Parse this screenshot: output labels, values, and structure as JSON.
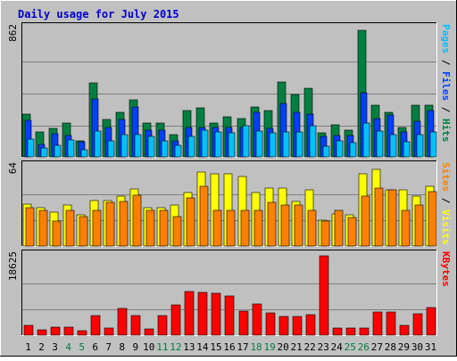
{
  "chart_data": {
    "type": "bar",
    "title": "Daily usage for July 2015",
    "categories": [
      "1",
      "2",
      "3",
      "4",
      "5",
      "6",
      "7",
      "8",
      "9",
      "10",
      "11",
      "12",
      "13",
      "14",
      "15",
      "16",
      "17",
      "18",
      "19",
      "20",
      "21",
      "22",
      "23",
      "24",
      "25",
      "26",
      "27",
      "28",
      "29",
      "30",
      "31"
    ],
    "weekend_days": [
      "4",
      "5",
      "11",
      "12",
      "18",
      "19",
      "25",
      "26"
    ],
    "panels": [
      {
        "name": "hits-files-pages",
        "ymax": 862,
        "ymax_label": "862",
        "right_label": {
          "parts": [
            {
              "text": "Pages",
              "color": "#00c0ff"
            },
            {
              "text": " / ",
              "color": "#000000"
            },
            {
              "text": "Files",
              "color": "#0040ff"
            },
            {
              "text": " / ",
              "color": "#000000"
            },
            {
              "text": "Hits",
              "color": "#008040"
            }
          ]
        },
        "series": [
          {
            "name": "Hits",
            "color": "#008040",
            "values": [
              285,
              170,
              190,
              225,
              110,
              495,
              250,
              300,
              385,
              225,
              230,
              150,
              310,
              330,
              230,
              270,
              255,
              335,
              310,
              500,
              420,
              460,
              160,
              215,
              180,
              852,
              350,
              300,
              200,
              350,
              350
            ]
          },
          {
            "name": "Files",
            "color": "#0040ff",
            "values": [
              245,
              85,
              155,
              145,
              100,
              390,
              200,
              250,
              335,
              180,
              180,
              110,
              200,
              200,
              200,
              200,
              195,
              300,
              190,
              360,
              300,
              290,
              140,
              145,
              145,
              430,
              260,
              280,
              170,
              240,
              310
            ]
          },
          {
            "name": "Pages",
            "color": "#00c0ff",
            "values": [
              120,
              60,
              75,
              115,
              50,
              175,
              110,
              150,
              150,
              140,
              105,
              80,
              135,
              180,
              170,
              160,
              210,
              175,
              160,
              165,
              165,
              210,
              70,
              110,
              95,
              225,
              175,
              150,
              100,
              150,
              165
            ]
          }
        ]
      },
      {
        "name": "visits-sites",
        "ymax": 64,
        "ymax_label": "64",
        "right_label": {
          "parts": [
            {
              "text": "Sites",
              "color": "#ff8000"
            },
            {
              "text": " / ",
              "color": "#000000"
            },
            {
              "text": "Visits",
              "color": "#ffff00"
            }
          ]
        },
        "series": [
          {
            "name": "Visits",
            "color": "#ffff00",
            "values": [
              34,
              31,
              27,
              33,
              25,
              37,
              37,
              40,
              46,
              31,
              31,
              33,
              43,
              60,
              58,
              58,
              56,
              43,
              47,
              47,
              36,
              45,
              21,
              26,
              25,
              58,
              62,
              45,
              45,
              40,
              48
            ]
          },
          {
            "name": "Sites",
            "color": "#ff8000",
            "values": [
              31,
              29,
              20,
              29,
              24,
              29,
              35,
              36,
              41,
              29,
              29,
              24,
              39,
              48,
              29,
              29,
              29,
              29,
              35,
              33,
              33,
              29,
              20,
              29,
              23,
              40,
              47,
              45,
              29,
              33,
              44
            ]
          }
        ]
      },
      {
        "name": "kbytes",
        "ymax": 18625,
        "ymax_label": "18625",
        "right_label": {
          "parts": [
            {
              "text": "KBytes",
              "color": "#ff0000"
            }
          ]
        },
        "series": [
          {
            "name": "KBytes",
            "color": "#ff0000",
            "values": [
              2300,
              1200,
              1800,
              1900,
              1000,
              4600,
              1700,
              6300,
              4600,
              1500,
              4600,
              7100,
              10300,
              10000,
              9900,
              9200,
              5600,
              7300,
              5200,
              4300,
              4300,
              4800,
              18625,
              1700,
              1700,
              1700,
              5500,
              5500,
              2200,
              5000,
              6500
            ]
          }
        ]
      }
    ]
  }
}
